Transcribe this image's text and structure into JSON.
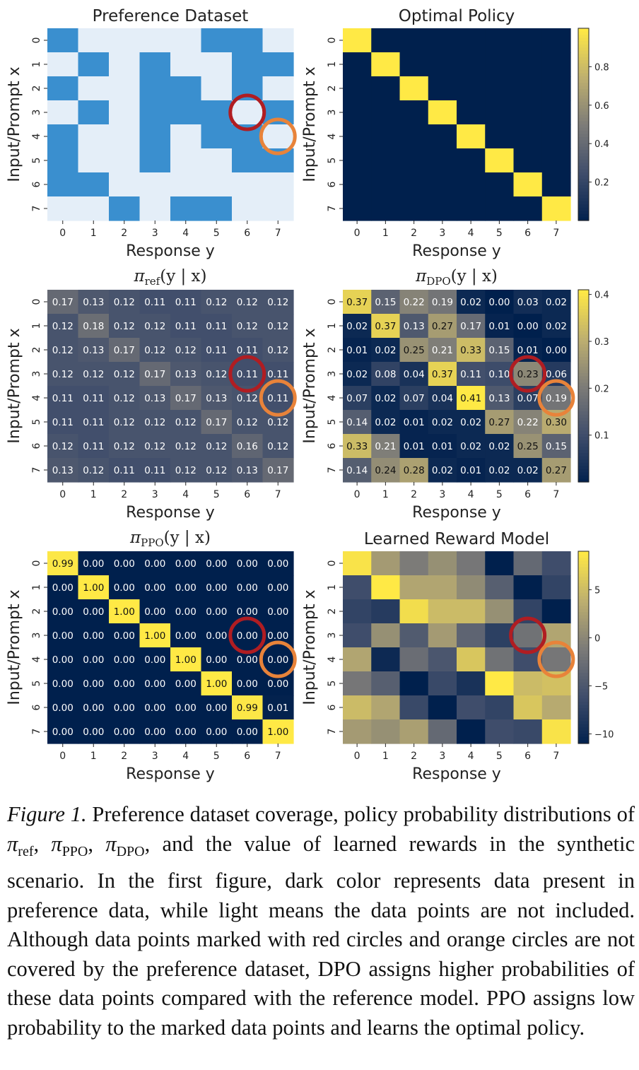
{
  "colors": {
    "dataset_present": "#3a8fcf",
    "dataset_absent": "#e4eef8",
    "red_circle": "#b01d22",
    "orange_circle": "#e8833a"
  },
  "chart_data": [
    {
      "id": "dataset",
      "type": "heatmap",
      "title": "Preference Dataset",
      "xlabel": "Response y",
      "ylabel": "Input/Prompt x",
      "x_ticks": [
        "0",
        "1",
        "2",
        "3",
        "4",
        "5",
        "6",
        "7"
      ],
      "y_ticks": [
        "0",
        "1",
        "2",
        "3",
        "4",
        "5",
        "6",
        "7"
      ],
      "colormap": "binary-blue",
      "annotated": false,
      "values": [
        [
          1,
          0,
          0,
          0,
          0,
          1,
          1,
          0
        ],
        [
          0,
          1,
          0,
          1,
          0,
          0,
          1,
          1
        ],
        [
          1,
          0,
          0,
          1,
          1,
          0,
          1,
          0
        ],
        [
          0,
          1,
          0,
          1,
          1,
          1,
          0,
          1
        ],
        [
          1,
          0,
          0,
          1,
          0,
          1,
          1,
          0
        ],
        [
          1,
          0,
          0,
          1,
          0,
          0,
          1,
          1
        ],
        [
          1,
          1,
          0,
          0,
          0,
          0,
          0,
          0
        ],
        [
          0,
          0,
          1,
          0,
          1,
          1,
          0,
          0
        ]
      ],
      "markers": [
        {
          "color": "red",
          "row": 3,
          "col": 6
        },
        {
          "color": "orange",
          "row": 4,
          "col": 7
        }
      ]
    },
    {
      "id": "optimal",
      "type": "heatmap",
      "title": "Optimal Policy",
      "xlabel": "Response y",
      "ylabel": "Input/Prompt x",
      "x_ticks": [
        "0",
        "1",
        "2",
        "3",
        "4",
        "5",
        "6",
        "7"
      ],
      "y_ticks": [
        "0",
        "1",
        "2",
        "3",
        "4",
        "5",
        "6",
        "7"
      ],
      "colormap": "cividis",
      "annotated": false,
      "vmin": 0,
      "vmax": 1,
      "values": [
        [
          1,
          0,
          0,
          0,
          0,
          0,
          0,
          0
        ],
        [
          0,
          1,
          0,
          0,
          0,
          0,
          0,
          0
        ],
        [
          0,
          0,
          1,
          0,
          0,
          0,
          0,
          0
        ],
        [
          0,
          0,
          0,
          1,
          0,
          0,
          0,
          0
        ],
        [
          0,
          0,
          0,
          0,
          1,
          0,
          0,
          0
        ],
        [
          0,
          0,
          0,
          0,
          0,
          1,
          0,
          0
        ],
        [
          0,
          0,
          0,
          0,
          0,
          0,
          1,
          0
        ],
        [
          0,
          0,
          0,
          0,
          0,
          0,
          0,
          1
        ]
      ],
      "colorbar_ticks": [
        {
          "value": 0.8,
          "label": "0.8"
        },
        {
          "value": 0.6,
          "label": "0.6"
        },
        {
          "value": 0.4,
          "label": "0.4"
        },
        {
          "value": 0.2,
          "label": "0.2"
        }
      ],
      "markers": []
    },
    {
      "id": "ref",
      "type": "heatmap",
      "title_main": "π",
      "title_sub": "ref",
      "title_args": "(y | x)",
      "xlabel": "Response y",
      "ylabel": "Input/Prompt x",
      "x_ticks": [
        "0",
        "1",
        "2",
        "3",
        "4",
        "5",
        "6",
        "7"
      ],
      "y_ticks": [
        "0",
        "1",
        "2",
        "3",
        "4",
        "5",
        "6",
        "7"
      ],
      "colormap": "cividis",
      "annotated": true,
      "vmin": 0.0,
      "vmax": 0.42,
      "values": [
        [
          0.17,
          0.13,
          0.12,
          0.11,
          0.11,
          0.12,
          0.12,
          0.12
        ],
        [
          0.12,
          0.18,
          0.12,
          0.12,
          0.11,
          0.11,
          0.12,
          0.12
        ],
        [
          0.12,
          0.13,
          0.17,
          0.12,
          0.12,
          0.11,
          0.11,
          0.12
        ],
        [
          0.12,
          0.12,
          0.12,
          0.17,
          0.13,
          0.12,
          0.11,
          0.11
        ],
        [
          0.11,
          0.11,
          0.12,
          0.13,
          0.17,
          0.13,
          0.12,
          0.11
        ],
        [
          0.11,
          0.11,
          0.12,
          0.12,
          0.12,
          0.17,
          0.12,
          0.12
        ],
        [
          0.12,
          0.11,
          0.12,
          0.12,
          0.12,
          0.12,
          0.16,
          0.12
        ],
        [
          0.13,
          0.12,
          0.11,
          0.11,
          0.12,
          0.12,
          0.13,
          0.17
        ]
      ],
      "markers": [
        {
          "color": "red",
          "row": 3,
          "col": 6
        },
        {
          "color": "orange",
          "row": 4,
          "col": 7
        }
      ]
    },
    {
      "id": "dpo",
      "type": "heatmap",
      "title_main": "π",
      "title_sub": "DPO",
      "title_args": "(y | x)",
      "xlabel": "Response y",
      "ylabel": "Input/Prompt x",
      "x_ticks": [
        "0",
        "1",
        "2",
        "3",
        "4",
        "5",
        "6",
        "7"
      ],
      "y_ticks": [
        "0",
        "1",
        "2",
        "3",
        "4",
        "5",
        "6",
        "7"
      ],
      "colormap": "cividis",
      "annotated": true,
      "vmin": 0.0,
      "vmax": 0.41,
      "values": [
        [
          0.37,
          0.15,
          0.22,
          0.19,
          0.02,
          0.0,
          0.03,
          0.02
        ],
        [
          0.02,
          0.37,
          0.13,
          0.27,
          0.17,
          0.01,
          0.0,
          0.02
        ],
        [
          0.01,
          0.02,
          0.25,
          0.21,
          0.33,
          0.15,
          0.01,
          0.0
        ],
        [
          0.02,
          0.08,
          0.04,
          0.37,
          0.11,
          0.1,
          0.23,
          0.06
        ],
        [
          0.07,
          0.02,
          0.07,
          0.04,
          0.41,
          0.13,
          0.07,
          0.19
        ],
        [
          0.14,
          0.02,
          0.01,
          0.02,
          0.02,
          0.27,
          0.22,
          0.3
        ],
        [
          0.33,
          0.21,
          0.01,
          0.01,
          0.02,
          0.02,
          0.25,
          0.15
        ],
        [
          0.14,
          0.24,
          0.28,
          0.02,
          0.01,
          0.02,
          0.02,
          0.27
        ]
      ],
      "colorbar_ticks": [
        {
          "value": 0.4,
          "label": "0.4"
        },
        {
          "value": 0.3,
          "label": "0.3"
        },
        {
          "value": 0.2,
          "label": "0.2"
        },
        {
          "value": 0.1,
          "label": "0.1"
        }
      ],
      "markers": [
        {
          "color": "red",
          "row": 3,
          "col": 6
        },
        {
          "color": "orange",
          "row": 4,
          "col": 7
        }
      ]
    },
    {
      "id": "ppo",
      "type": "heatmap",
      "title_main": "π",
      "title_sub": "PPO",
      "title_args": "(y | x)",
      "xlabel": "Response y",
      "ylabel": "Input/Prompt x",
      "x_ticks": [
        "0",
        "1",
        "2",
        "3",
        "4",
        "5",
        "6",
        "7"
      ],
      "y_ticks": [
        "0",
        "1",
        "2",
        "3",
        "4",
        "5",
        "6",
        "7"
      ],
      "colormap": "cividis",
      "annotated": true,
      "vmin": 0.0,
      "vmax": 1.0,
      "values": [
        [
          0.99,
          0.0,
          0.0,
          0.0,
          0.0,
          0.0,
          0.0,
          0.0
        ],
        [
          0.0,
          1.0,
          0.0,
          0.0,
          0.0,
          0.0,
          0.0,
          0.0
        ],
        [
          0.0,
          0.0,
          1.0,
          0.0,
          0.0,
          0.0,
          0.0,
          0.0
        ],
        [
          0.0,
          0.0,
          0.0,
          1.0,
          0.0,
          0.0,
          0.0,
          0.0
        ],
        [
          0.0,
          0.0,
          0.0,
          0.0,
          1.0,
          0.0,
          0.0,
          0.0
        ],
        [
          0.0,
          0.0,
          0.0,
          0.0,
          0.0,
          1.0,
          0.0,
          0.0
        ],
        [
          0.0,
          0.0,
          0.0,
          0.0,
          0.0,
          0.0,
          0.99,
          0.01
        ],
        [
          0.0,
          0.0,
          0.0,
          0.0,
          0.0,
          0.0,
          0.0,
          1.0
        ]
      ],
      "markers": [
        {
          "color": "red",
          "row": 3,
          "col": 6
        },
        {
          "color": "orange",
          "row": 4,
          "col": 7
        }
      ]
    },
    {
      "id": "reward",
      "type": "heatmap",
      "title": "Learned Reward Model",
      "xlabel": "Response y",
      "ylabel": "Input/Prompt x",
      "x_ticks": [
        "0",
        "1",
        "2",
        "3",
        "4",
        "5",
        "6",
        "7"
      ],
      "y_ticks": [
        "0",
        "1",
        "2",
        "3",
        "4",
        "5",
        "6",
        "7"
      ],
      "colormap": "cividis",
      "annotated": false,
      "vmin": -11,
      "vmax": 9,
      "values": [
        [
          8.5,
          2.0,
          -1.0,
          1.0,
          -1.5,
          -11.0,
          -3.0,
          -6.0
        ],
        [
          -6.0,
          9.0,
          3.0,
          3.0,
          0.5,
          -4.0,
          -11.0,
          -7.0
        ],
        [
          -7.0,
          -8.0,
          8.0,
          5.0,
          5.0,
          1.0,
          -7.0,
          -11.0
        ],
        [
          -6.0,
          1.0,
          -4.5,
          2.0,
          -3.5,
          -7.5,
          -2.0,
          3.0
        ],
        [
          3.0,
          -10.0,
          -2.5,
          -5.0,
          6.0,
          -2.0,
          -6.0,
          -1.5
        ],
        [
          -1.5,
          -4.0,
          -11.0,
          -6.5,
          -9.0,
          9.0,
          5.0,
          5.5
        ],
        [
          5.0,
          3.0,
          -6.5,
          -11.0,
          -6.0,
          -7.0,
          6.0,
          3.5
        ],
        [
          2.0,
          1.0,
          2.5,
          -3.0,
          -11.0,
          -6.0,
          -6.5,
          8.5
        ]
      ],
      "colorbar_ticks": [
        {
          "value": 5,
          "label": "5"
        },
        {
          "value": 0,
          "label": "0"
        },
        {
          "value": -5,
          "label": "−5"
        },
        {
          "value": -10,
          "label": "−10"
        }
      ],
      "markers": [
        {
          "color": "red",
          "row": 3,
          "col": 6
        },
        {
          "color": "orange",
          "row": 4,
          "col": 7
        }
      ]
    }
  ],
  "caption": {
    "label": "Figure 1.",
    "text_before": " Preference dataset coverage, policy probability distributions of ",
    "pi1": "π",
    "sub1": "ref",
    "sep1": ", ",
    "pi2": "π",
    "sub2": "PPO",
    "sep2": ", ",
    "pi3": "π",
    "sub3": "DPO",
    "text_after": ", and the value of learned rewards in the synthetic scenario.  In the first figure, dark color represents data present in preference data, while light means the data points are not included.  Although data points marked with red circles and orange circles are not covered by the preference dataset, DPO assigns higher probabilities of these data points compared with the reference model. PPO assigns low probability to the marked data points and learns the optimal policy."
  }
}
